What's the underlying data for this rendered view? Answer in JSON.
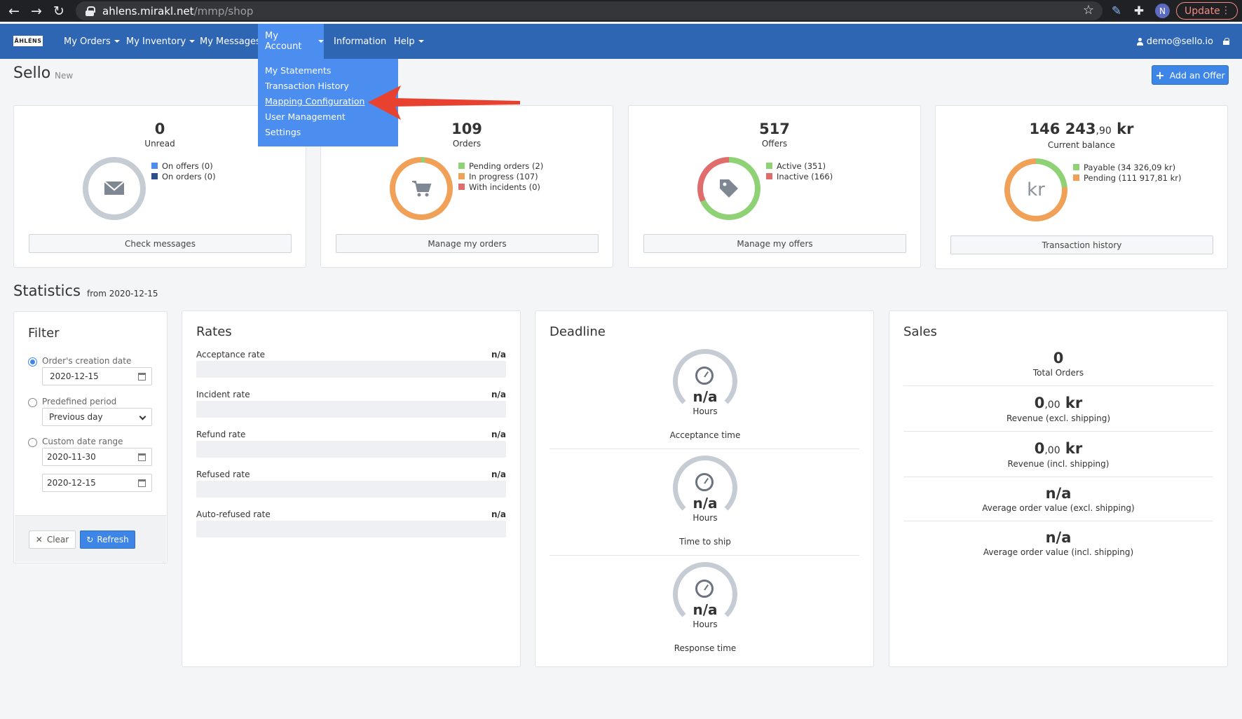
{
  "browser": {
    "url_host": "ahlens.mirakl.net",
    "url_path": "/mmp/shop",
    "avatar_letter": "N",
    "update_label": "Update"
  },
  "navbar": {
    "logo": "ÅHLÉNS",
    "items": [
      {
        "label": "My Orders"
      },
      {
        "label": "My Inventory"
      },
      {
        "label": "My Messages"
      },
      {
        "label": "My Account"
      },
      {
        "label": "Information"
      },
      {
        "label": "Help"
      }
    ],
    "user": "demo@sello.io"
  },
  "dropdown": {
    "items": [
      {
        "label": "My Statements"
      },
      {
        "label": "Transaction History"
      },
      {
        "label": "Mapping Configuration"
      },
      {
        "label": "User Management"
      },
      {
        "label": "Settings"
      }
    ]
  },
  "page": {
    "title": "Sello",
    "subtitle": "New",
    "add_offer": "Add an Offer"
  },
  "cards": {
    "messages": {
      "value": "0",
      "caption": "Unread",
      "legend": [
        {
          "label": "On offers (0)",
          "color": "#4b8ef0"
        },
        {
          "label": "On orders (0)",
          "color": "#2a4f8c"
        }
      ],
      "button": "Check messages"
    },
    "orders": {
      "value": "109",
      "caption": "Orders",
      "legend": [
        {
          "label": "Pending orders (2)",
          "color": "#8fd175"
        },
        {
          "label": "In progress (107)",
          "color": "#f0a057"
        },
        {
          "label": "With incidents (0)",
          "color": "#e06c6c"
        }
      ],
      "button": "Manage my orders"
    },
    "offers": {
      "value": "517",
      "caption": "Offers",
      "legend": [
        {
          "label": "Active (351)",
          "color": "#8fd175"
        },
        {
          "label": "Inactive (166)",
          "color": "#e06c6c"
        }
      ],
      "button": "Manage my offers"
    },
    "balance": {
      "value_main": "146 243",
      "value_cents": ",90",
      "value_unit": " kr",
      "caption": "Current balance",
      "ring_text": "kr",
      "legend": [
        {
          "label": "Payable (34 326,09 kr)",
          "color": "#8fd175"
        },
        {
          "label": "Pending (111 917,81 kr)",
          "color": "#f0a057"
        }
      ],
      "button": "Transaction history"
    }
  },
  "statistics": {
    "title": "Statistics",
    "from": "from 2020-12-15"
  },
  "filter": {
    "title": "Filter",
    "creation_label": "Order's creation date",
    "creation_value": "2020-12-15",
    "period_label": "Predefined period",
    "period_value": "Previous day",
    "custom_label": "Custom date range",
    "custom_from": "2020-11-30",
    "custom_to": "2020-12-15",
    "clear_label": "Clear",
    "refresh_label": "Refresh"
  },
  "rates": {
    "title": "Rates",
    "items": [
      {
        "label": "Acceptance rate",
        "value": "n/a"
      },
      {
        "label": "Incident rate",
        "value": "n/a"
      },
      {
        "label": "Refund rate",
        "value": "n/a"
      },
      {
        "label": "Refused rate",
        "value": "n/a"
      },
      {
        "label": "Auto-refused rate",
        "value": "n/a"
      }
    ]
  },
  "deadline": {
    "title": "Deadline",
    "items": [
      {
        "value": "n/a",
        "unit": "Hours",
        "caption": "Acceptance time"
      },
      {
        "value": "n/a",
        "unit": "Hours",
        "caption": "Time to ship"
      },
      {
        "value": "n/a",
        "unit": "Hours",
        "caption": "Response time"
      }
    ]
  },
  "sales": {
    "title": "Sales",
    "total_orders_value": "0",
    "total_orders_caption": "Total Orders",
    "rev_excl_main": "0",
    "rev_excl_cents": ",00",
    "rev_excl_unit": " kr",
    "rev_excl_caption": "Revenue (excl. shipping)",
    "rev_incl_main": "0",
    "rev_incl_cents": ",00",
    "rev_incl_unit": " kr",
    "rev_incl_caption": "Revenue (incl. shipping)",
    "aov_excl_value": "n/a",
    "aov_excl_caption": "Average order value (excl. shipping)",
    "aov_incl_value": "n/a",
    "aov_incl_caption": "Average order value (incl. shipping)"
  },
  "colors": {
    "navbar": "#2f66b3",
    "accent": "#3d86e8",
    "annotation_arrow": "#e8412f"
  }
}
